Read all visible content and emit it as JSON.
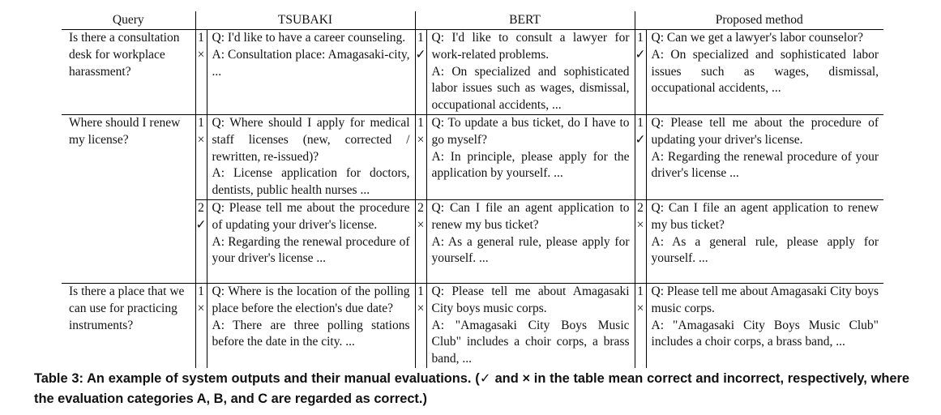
{
  "headers": {
    "query": "Query",
    "tsubaki": "TSUBAKI",
    "bert": "BERT",
    "proposed": "Proposed method"
  },
  "groups": [
    {
      "query": "Is there a consultation desk for workplace harassment?",
      "rows": [
        {
          "tsubaki": {
            "rank": "1",
            "mark": "×",
            "q": "Q: I'd like to have a career counseling.",
            "a": "A: Consultation place: Amagasaki-city, ..."
          },
          "bert": {
            "rank": "1",
            "mark": "✓",
            "q": "Q: I'd like to consult a lawyer for work-related problems.",
            "a": "A: On specialized and sophisticated labor issues such as wages, dismissal, occupational accidents, ..."
          },
          "proposed": {
            "rank": "1",
            "mark": "✓",
            "q": "Q: Can we get a lawyer's labor counselor?",
            "a": "A: On specialized and sophisticated labor issues such as wages, dismissal, occupational accidents, ..."
          }
        }
      ]
    },
    {
      "query": "Where should I renew my license?",
      "rows": [
        {
          "tsubaki": {
            "rank": "1",
            "mark": "×",
            "q": "Q: Where should I apply for medical staff licenses (new, corrected / rewritten, re-issued)?",
            "a": "A: License application for doctors, dentists, public health nurses ..."
          },
          "bert": {
            "rank": "1",
            "mark": "×",
            "q": "Q: To update a bus ticket, do I have to go myself?",
            "a": "A: In principle, please apply for the application by yourself. ..."
          },
          "proposed": {
            "rank": "1",
            "mark": "✓",
            "q": "Q: Please tell me about the procedure of updating your driver's license.",
            "a": "A: Regarding the renewal procedure of your driver's license ..."
          }
        },
        {
          "tsubaki": {
            "rank": "2",
            "mark": "✓",
            "q": "Q: Please tell me about the procedure of updating your driver's license.",
            "a": "A: Regarding the renewal procedure of your driver's license ..."
          },
          "bert": {
            "rank": "2",
            "mark": "×",
            "q": "Q: Can I file an agent application to renew my bus ticket?",
            "a": "A: As a general rule, please apply for yourself. ..."
          },
          "proposed": {
            "rank": "2",
            "mark": "×",
            "q": "Q: Can I file an agent application to renew my bus ticket?",
            "a": "A: As a general rule, please apply for yourself. ..."
          }
        }
      ]
    },
    {
      "query": "Is there a place that we can use for practicing instruments?",
      "rows": [
        {
          "tsubaki": {
            "rank": "1",
            "mark": "×",
            "q": "Q: Where is the location of the polling place before the election's due date?",
            "a": "A: There are three polling stations before the date in the city. ..."
          },
          "bert": {
            "rank": "1",
            "mark": "×",
            "q": "Q: Please tell me about Amagasaki City boys music corps.",
            "a": "A: \"Amagasaki City Boys Music Club\" includes a choir corps, a brass band, ..."
          },
          "proposed": {
            "rank": "1",
            "mark": "×",
            "q": "Q: Please tell me about Amagasaki City boys music corps.",
            "a": "A: \"Amagasaki City Boys Music Club\" includes a choir corps, a brass band, ..."
          }
        }
      ]
    }
  ],
  "caption": "Table 3: An example of system outputs and their manual evaluations. (✓ and × in the table mean correct and incorrect, respectively, where the evaluation categories A, B, and C are regarded as correct.)"
}
